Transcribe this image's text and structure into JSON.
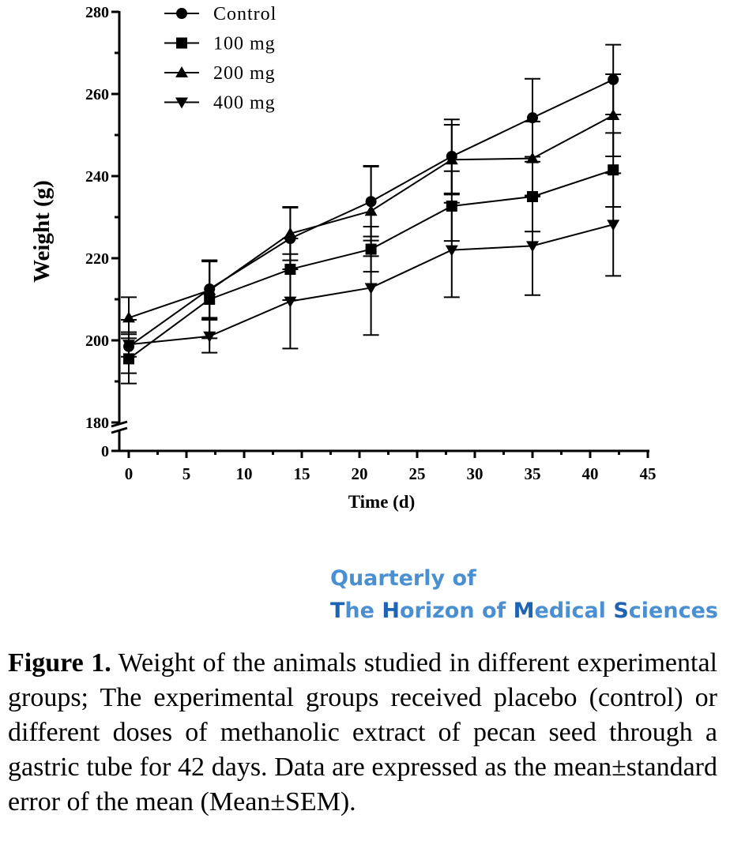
{
  "chart_data": {
    "type": "line",
    "xlabel": "Time (d)",
    "ylabel": "Weight (g)",
    "x_ticks": [
      "0",
      "5",
      "10",
      "15",
      "20",
      "25",
      "30",
      "35",
      "40",
      "45"
    ],
    "y_ticks": [
      "0",
      "180",
      "200",
      "220",
      "240",
      "260",
      "280"
    ],
    "xlim": [
      0,
      45
    ],
    "ylim": [
      180,
      280
    ],
    "y_axis_break": true,
    "grid": false,
    "legend_position": "top-left",
    "x": [
      0,
      7,
      14,
      21,
      28,
      35,
      42
    ],
    "series": [
      {
        "name": "Control",
        "marker": "circle",
        "values": [
          198.5,
          212.5,
          224.8,
          233.8,
          244.8,
          254.2,
          263.5
        ],
        "errors": [
          6.5,
          7.0,
          7.5,
          8.5,
          9.0,
          9.5,
          8.5
        ]
      },
      {
        "name": "100 mg",
        "marker": "square",
        "values": [
          195.5,
          210.0,
          217.3,
          222.2,
          232.7,
          235.0,
          241.5
        ],
        "errors": [
          6.0,
          9.5,
          7.5,
          5.5,
          8.5,
          8.5,
          9.0
        ]
      },
      {
        "name": "200 mg",
        "marker": "triangle-up",
        "values": [
          205.5,
          212.2,
          226.0,
          231.5,
          244.0,
          244.3,
          254.8
        ],
        "errors": [
          5.0,
          7.0,
          6.5,
          11.0,
          8.5,
          9.0,
          10.0
        ]
      },
      {
        "name": "400 mg",
        "marker": "triangle-down",
        "values": [
          199.0,
          201.0,
          209.5,
          212.8,
          222.0,
          223.0,
          228.2
        ],
        "errors": [
          3.0,
          4.0,
          11.5,
          11.5,
          11.5,
          12.0,
          12.5
        ]
      }
    ]
  },
  "journal": {
    "line1": "Quarterly of",
    "line2_parts": [
      "T",
      "he ",
      "H",
      "orizon of ",
      "M",
      "edical ",
      "S",
      "ciences"
    ]
  },
  "caption": {
    "label": "Figure 1.",
    "text": " Weight of the animals studied in different experimental groups; The experimental groups received placebo (control) or different doses of methanolic extract of pecan seed through a gastric tube for 42 days. Data are expressed as the mean±standard error of the mean (Mean±SEM)."
  }
}
